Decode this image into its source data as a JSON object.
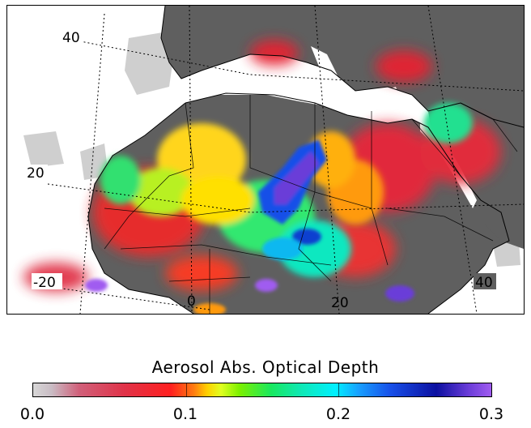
{
  "map": {
    "grid_labels": {
      "lat_40": "40",
      "lat_20": "20",
      "lat_m20": "-20",
      "lon_0": "0",
      "lon_20": "20",
      "lon_40": "40"
    },
    "colors": {
      "ocean": "#ffffff",
      "land_no_data": "#5f5f5f",
      "low_aerosol": "#cfcfcf"
    }
  },
  "legend": {
    "title": "Aerosol Abs. Optical Depth",
    "ticks": [
      "0.0",
      "0.1",
      "0.2",
      "0.3"
    ],
    "range": [
      0.0,
      0.3
    ]
  }
}
